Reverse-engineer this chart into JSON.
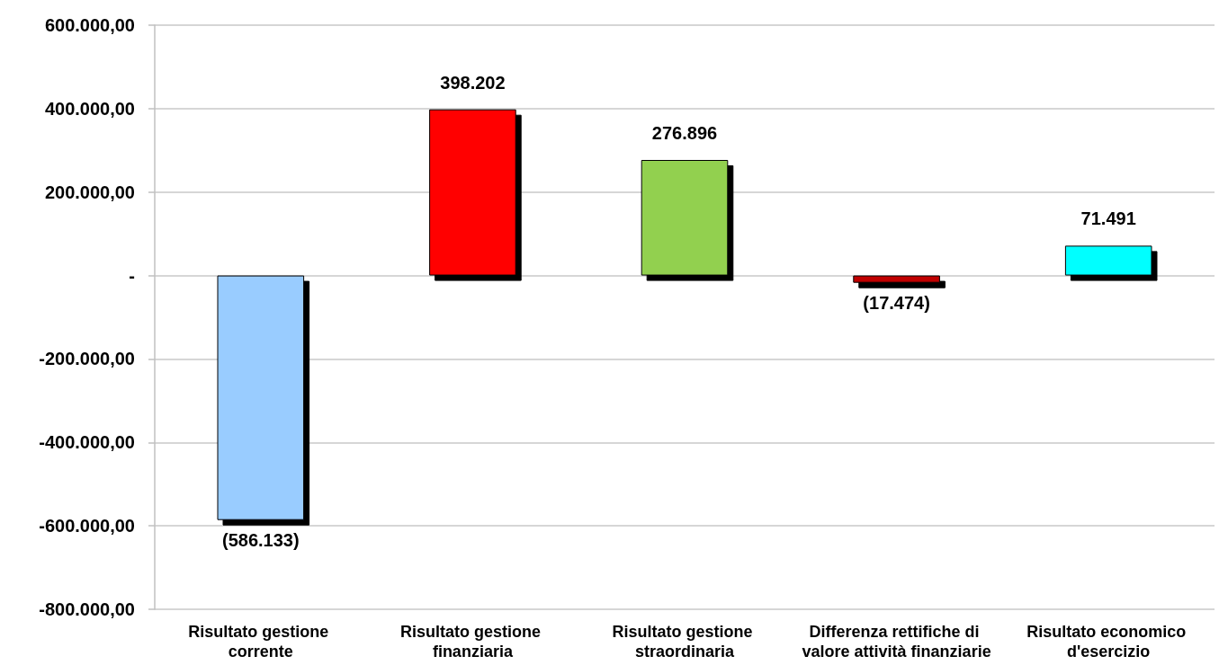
{
  "chart_data": {
    "type": "bar",
    "categories": [
      "Risultato gestione corrente",
      "Risultato gestione finanziaria",
      "Risultato gestione straordinaria",
      "Differenza rettifiche di valore attività finanziarie",
      "Risultato economico d'esercizio"
    ],
    "values": [
      -586133,
      398202,
      276896,
      -17474,
      71491
    ],
    "colors": [
      "#99ccff",
      "#ff0000",
      "#92d050",
      "#c00000",
      "#00ffff"
    ],
    "value_labels": [
      "(586.133)",
      "398.202",
      "276.896",
      "(17.474)",
      "71.491"
    ],
    "ylim": [
      -800000,
      600000
    ],
    "yticks": [
      {
        "value": -800000,
        "label": "-800.000,00"
      },
      {
        "value": -600000,
        "label": "-600.000,00"
      },
      {
        "value": -400000,
        "label": "-400.000,00"
      },
      {
        "value": -200000,
        "label": "-200.000,00"
      },
      {
        "value": 0,
        "label": "-"
      },
      {
        "value": 200000,
        "label": "200.000,00"
      },
      {
        "value": 400000,
        "label": "400.000,00"
      },
      {
        "value": 600000,
        "label": "600.000,00"
      }
    ],
    "grid": "y"
  }
}
